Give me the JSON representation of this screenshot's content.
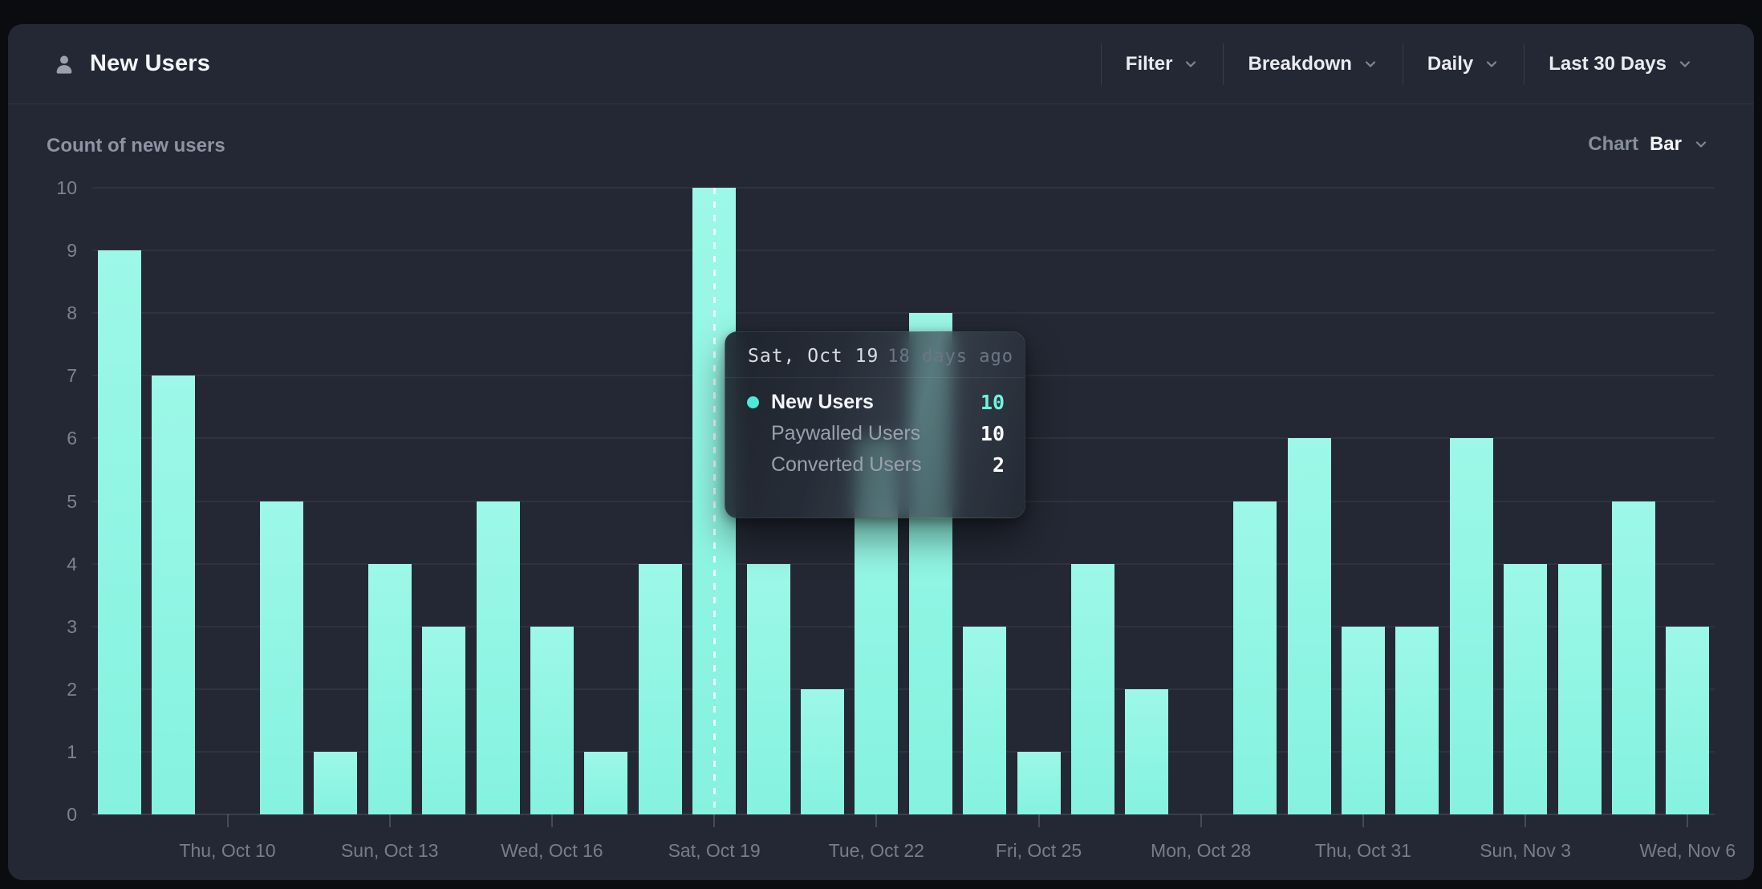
{
  "page": {
    "bg": "#0a0c10",
    "card_bg": "#232834",
    "accent": "#8df5e3"
  },
  "header": {
    "title": "New Users",
    "controls": [
      {
        "label": "Filter"
      },
      {
        "label": "Breakdown"
      },
      {
        "label": "Daily"
      },
      {
        "label": "Last 30 Days"
      }
    ]
  },
  "subheader": {
    "metric_label": "Count of new users",
    "chart_label": "Chart",
    "chart_type": "Bar"
  },
  "tooltip": {
    "date": "Sat, Oct 19",
    "relative_time": "18 days ago",
    "rows": [
      {
        "label": "New Users",
        "value": "10"
      },
      {
        "label": "Paywalled Users",
        "value": "10"
      },
      {
        "label": "Converted Users",
        "value": "2"
      }
    ]
  },
  "chart_data": {
    "type": "bar",
    "title": "Count of new users",
    "series_name": "New Users",
    "categories": [
      "Oct 8",
      "Oct 9",
      "Oct 10",
      "Oct 11",
      "Oct 12",
      "Oct 13",
      "Oct 14",
      "Oct 15",
      "Oct 16",
      "Oct 17",
      "Oct 18",
      "Oct 19",
      "Oct 20",
      "Oct 21",
      "Oct 22",
      "Oct 23",
      "Oct 24",
      "Oct 25",
      "Oct 26",
      "Oct 27",
      "Oct 28",
      "Oct 29",
      "Oct 30",
      "Oct 31",
      "Nov 1",
      "Nov 2",
      "Nov 3",
      "Nov 4",
      "Nov 5",
      "Nov 6"
    ],
    "values": [
      9,
      7,
      0,
      5,
      1,
      4,
      3,
      5,
      3,
      1,
      4,
      10,
      4,
      2,
      6,
      8,
      3,
      1,
      4,
      2,
      0,
      5,
      6,
      3,
      3,
      6,
      4,
      4,
      5,
      3
    ],
    "ylim": [
      0,
      10
    ],
    "ytick_step": 1,
    "xtick_indices": [
      2,
      5,
      8,
      11,
      14,
      17,
      20,
      23,
      26,
      29
    ],
    "xtick_labels": [
      "Thu, Oct 10",
      "Sun, Oct 13",
      "Wed, Oct 16",
      "Sat, Oct 19",
      "Tue, Oct 22",
      "Fri, Oct 25",
      "Mon, Oct 28",
      "Thu, Oct 31",
      "Sun, Nov 3",
      "Wed, Nov 6"
    ],
    "bar_color": "#8df5e3",
    "grid": true,
    "legend": false,
    "hover_index": 11
  }
}
